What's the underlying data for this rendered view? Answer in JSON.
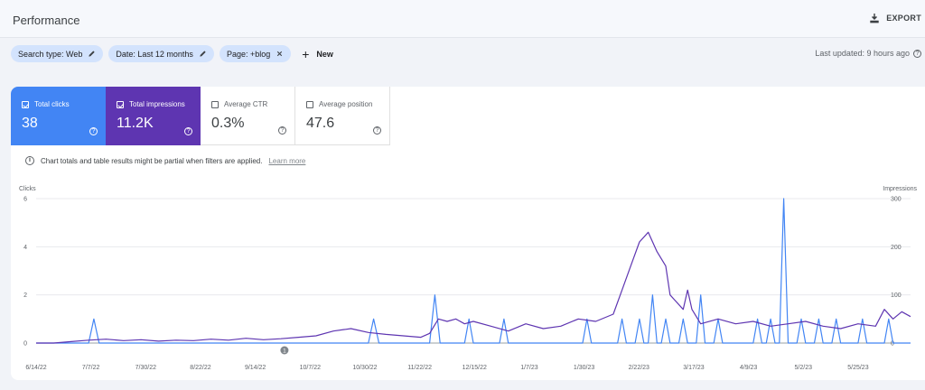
{
  "header": {
    "title": "Performance",
    "export_label": "EXPORT",
    "export_icon": "download-icon"
  },
  "filters": {
    "chips": [
      {
        "label": "Search type: Web",
        "icon": "pencil-icon"
      },
      {
        "label": "Date: Last 12 months",
        "icon": "pencil-icon"
      },
      {
        "label": "Page: +blog",
        "icon": "close-icon"
      }
    ],
    "new_label": "New",
    "last_updated": "Last updated: 9 hours ago"
  },
  "metrics": [
    {
      "label": "Total clicks",
      "value": "38",
      "checked": true,
      "color": "#4285f4"
    },
    {
      "label": "Total impressions",
      "value": "11.2K",
      "checked": true,
      "color": "#5e35b1"
    },
    {
      "label": "Average CTR",
      "value": "0.3%",
      "checked": false
    },
    {
      "label": "Average position",
      "value": "47.6",
      "checked": false
    }
  ],
  "notice": {
    "text": "Chart totals and table results might be partial when filters are applied.",
    "link": "Learn more"
  },
  "chart_data": {
    "type": "line",
    "left_axis": {
      "label": "Clicks",
      "ticks": [
        "6",
        "4",
        "2",
        "0"
      ],
      "range": [
        0,
        6
      ]
    },
    "right_axis": {
      "label": "Impressions",
      "ticks": [
        "300",
        "200",
        "100",
        "0"
      ],
      "range": [
        0,
        300
      ]
    },
    "x_ticks": [
      "6/14/22",
      "7/7/22",
      "7/30/22",
      "8/22/22",
      "9/14/22",
      "10/7/22",
      "10/30/22",
      "11/22/22",
      "12/15/22",
      "1/7/23",
      "1/30/23",
      "2/22/23",
      "3/17/23",
      "4/9/23",
      "5/2/23",
      "5/25/23"
    ],
    "annotation": {
      "label": "1",
      "x_fraction": 0.284
    },
    "series": [
      {
        "name": "Clicks",
        "color": "#4285f4",
        "points": [
          [
            0.0,
            0
          ],
          [
            0.06,
            0
          ],
          [
            0.066,
            1
          ],
          [
            0.072,
            0
          ],
          [
            0.28,
            0
          ],
          [
            0.38,
            0
          ],
          [
            0.386,
            1
          ],
          [
            0.392,
            0
          ],
          [
            0.45,
            0
          ],
          [
            0.456,
            2
          ],
          [
            0.462,
            0
          ],
          [
            0.49,
            0
          ],
          [
            0.495,
            1
          ],
          [
            0.5,
            0
          ],
          [
            0.53,
            0
          ],
          [
            0.535,
            1
          ],
          [
            0.54,
            0
          ],
          [
            0.625,
            0
          ],
          [
            0.63,
            1
          ],
          [
            0.635,
            0
          ],
          [
            0.665,
            0
          ],
          [
            0.67,
            1
          ],
          [
            0.675,
            0
          ],
          [
            0.685,
            0
          ],
          [
            0.69,
            1
          ],
          [
            0.695,
            0
          ],
          [
            0.7,
            0
          ],
          [
            0.705,
            2
          ],
          [
            0.71,
            0
          ],
          [
            0.715,
            0
          ],
          [
            0.72,
            1
          ],
          [
            0.725,
            0
          ],
          [
            0.735,
            0
          ],
          [
            0.74,
            1
          ],
          [
            0.745,
            0
          ],
          [
            0.755,
            0
          ],
          [
            0.76,
            2
          ],
          [
            0.765,
            0
          ],
          [
            0.775,
            0
          ],
          [
            0.78,
            1
          ],
          [
            0.785,
            0
          ],
          [
            0.82,
            0
          ],
          [
            0.825,
            1
          ],
          [
            0.83,
            0
          ],
          [
            0.835,
            0
          ],
          [
            0.84,
            1
          ],
          [
            0.845,
            0
          ],
          [
            0.85,
            0
          ],
          [
            0.855,
            6
          ],
          [
            0.86,
            0
          ],
          [
            0.87,
            0
          ],
          [
            0.875,
            1
          ],
          [
            0.88,
            0
          ],
          [
            0.89,
            0
          ],
          [
            0.895,
            1
          ],
          [
            0.9,
            0
          ],
          [
            0.91,
            0
          ],
          [
            0.915,
            1
          ],
          [
            0.92,
            0
          ],
          [
            0.94,
            0
          ],
          [
            0.945,
            1
          ],
          [
            0.95,
            0
          ],
          [
            0.97,
            0
          ],
          [
            0.975,
            1
          ],
          [
            0.98,
            0
          ],
          [
            1.0,
            0
          ]
        ]
      },
      {
        "name": "Impressions",
        "color": "#5e35b1",
        "points": [
          [
            0.0,
            0
          ],
          [
            0.02,
            0
          ],
          [
            0.04,
            3
          ],
          [
            0.06,
            6
          ],
          [
            0.08,
            8
          ],
          [
            0.1,
            5
          ],
          [
            0.12,
            7
          ],
          [
            0.14,
            4
          ],
          [
            0.16,
            6
          ],
          [
            0.18,
            5
          ],
          [
            0.2,
            8
          ],
          [
            0.22,
            6
          ],
          [
            0.24,
            10
          ],
          [
            0.26,
            7
          ],
          [
            0.28,
            9
          ],
          [
            0.3,
            12
          ],
          [
            0.32,
            15
          ],
          [
            0.34,
            25
          ],
          [
            0.36,
            30
          ],
          [
            0.38,
            22
          ],
          [
            0.4,
            18
          ],
          [
            0.42,
            15
          ],
          [
            0.44,
            12
          ],
          [
            0.45,
            20
          ],
          [
            0.46,
            50
          ],
          [
            0.47,
            45
          ],
          [
            0.48,
            50
          ],
          [
            0.49,
            40
          ],
          [
            0.5,
            45
          ],
          [
            0.52,
            35
          ],
          [
            0.54,
            25
          ],
          [
            0.56,
            40
          ],
          [
            0.58,
            30
          ],
          [
            0.6,
            35
          ],
          [
            0.62,
            50
          ],
          [
            0.64,
            45
          ],
          [
            0.66,
            60
          ],
          [
            0.67,
            110
          ],
          [
            0.68,
            160
          ],
          [
            0.69,
            210
          ],
          [
            0.7,
            230
          ],
          [
            0.71,
            190
          ],
          [
            0.72,
            160
          ],
          [
            0.725,
            100
          ],
          [
            0.73,
            90
          ],
          [
            0.74,
            70
          ],
          [
            0.745,
            110
          ],
          [
            0.75,
            70
          ],
          [
            0.76,
            40
          ],
          [
            0.78,
            50
          ],
          [
            0.8,
            40
          ],
          [
            0.82,
            45
          ],
          [
            0.84,
            35
          ],
          [
            0.86,
            40
          ],
          [
            0.88,
            45
          ],
          [
            0.9,
            35
          ],
          [
            0.92,
            30
          ],
          [
            0.94,
            40
          ],
          [
            0.96,
            35
          ],
          [
            0.97,
            70
          ],
          [
            0.98,
            50
          ],
          [
            0.99,
            65
          ],
          [
            1.0,
            55
          ]
        ]
      }
    ]
  }
}
